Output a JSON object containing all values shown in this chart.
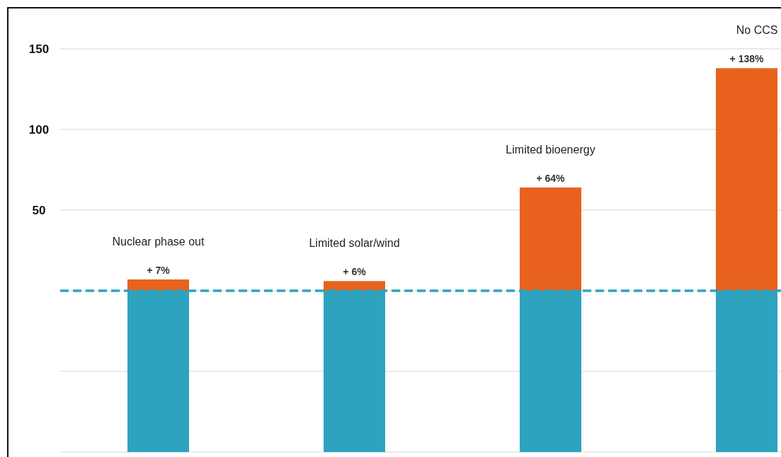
{
  "chart_data": {
    "type": "bar",
    "stacked": true,
    "categories": [
      "Nuclear phase out",
      "Limited solar/wind",
      "Limited bioenergy",
      "No CCS"
    ],
    "series": [
      {
        "color": "#2ea3bf",
        "values": [
          -100,
          -100,
          -100,
          -100
        ]
      },
      {
        "color": "#e8621e",
        "values": [
          7,
          6,
          64,
          138
        ],
        "value_labels": [
          "+ 7%",
          "+ 6%",
          "+ 64%",
          "+ 138%"
        ]
      }
    ],
    "ylim": [
      -100,
      175
    ],
    "yticks": [
      {
        "value": -100,
        "label": null
      },
      {
        "value": -50,
        "label": null
      },
      {
        "value": 0,
        "label": null
      },
      50,
      100,
      150
    ],
    "grid": "y",
    "ref_lines": [
      {
        "axis": "y",
        "value": 0,
        "color": "#2ea3bf",
        "line_style": "dashed"
      }
    ]
  }
}
